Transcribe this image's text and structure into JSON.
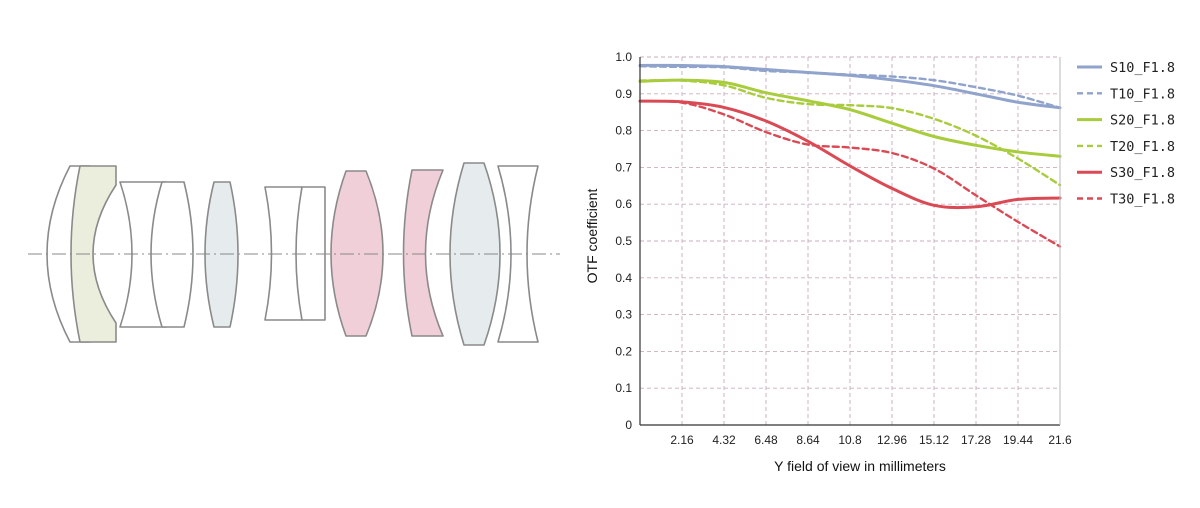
{
  "diagram": {
    "description_icon": "lens-cross-section-icon"
  },
  "colors": {
    "s10": "#8fa3cc",
    "t10": "#8fa3cc",
    "s20": "#a8cc3c",
    "t20": "#a8cc3c",
    "s30": "#d94a55",
    "t30": "#d94a55",
    "grid": "#c9aebd",
    "lens_stroke": "#8a8a8a",
    "lens_yellow": "#eceedd",
    "lens_blue": "#e6ecee",
    "lens_pink": "#f0cfd8"
  },
  "chart_data": {
    "type": "line",
    "title": "",
    "xlabel": "Y field of view in millimeters",
    "ylabel": "OTF coefficient",
    "xlim": [
      0,
      21.6
    ],
    "ylim": [
      0,
      1.0
    ],
    "x_ticks": [
      "2.16",
      "4.32",
      "6.48",
      "8.64",
      "10.8",
      "12.96",
      "15.12",
      "17.28",
      "19.44",
      "21.6"
    ],
    "y_ticks": [
      "0",
      "0.1",
      "0.2",
      "0.3",
      "0.4",
      "0.5",
      "0.6",
      "0.7",
      "0.8",
      "0.9",
      "1.0"
    ],
    "legend_position": "right",
    "series": [
      {
        "name": "S10_F1.8",
        "color_key": "s10",
        "dashed": false,
        "points": [
          [
            0,
            0.977
          ],
          [
            2.16,
            0.977
          ],
          [
            4.32,
            0.974
          ],
          [
            6.48,
            0.966
          ],
          [
            8.64,
            0.958
          ],
          [
            10.8,
            0.95
          ],
          [
            12.96,
            0.938
          ],
          [
            15.12,
            0.922
          ],
          [
            17.28,
            0.9
          ],
          [
            19.44,
            0.877
          ],
          [
            21.6,
            0.862
          ]
        ]
      },
      {
        "name": "T10_F1.8",
        "color_key": "t10",
        "dashed": true,
        "points": [
          [
            0,
            0.975
          ],
          [
            2.16,
            0.973
          ],
          [
            4.32,
            0.972
          ],
          [
            6.48,
            0.962
          ],
          [
            8.64,
            0.958
          ],
          [
            10.8,
            0.952
          ],
          [
            12.96,
            0.947
          ],
          [
            15.12,
            0.937
          ],
          [
            17.28,
            0.918
          ],
          [
            19.44,
            0.895
          ],
          [
            21.6,
            0.862
          ]
        ]
      },
      {
        "name": "S20_F1.8",
        "color_key": "s20",
        "dashed": false,
        "points": [
          [
            0,
            0.934
          ],
          [
            2.16,
            0.937
          ],
          [
            4.32,
            0.931
          ],
          [
            6.48,
            0.903
          ],
          [
            8.64,
            0.881
          ],
          [
            10.8,
            0.857
          ],
          [
            12.96,
            0.82
          ],
          [
            15.12,
            0.784
          ],
          [
            17.28,
            0.76
          ],
          [
            19.44,
            0.742
          ],
          [
            21.6,
            0.73
          ]
        ]
      },
      {
        "name": "T20_F1.8",
        "color_key": "t20",
        "dashed": true,
        "points": [
          [
            0,
            0.936
          ],
          [
            2.16,
            0.936
          ],
          [
            4.32,
            0.923
          ],
          [
            6.48,
            0.889
          ],
          [
            8.64,
            0.872
          ],
          [
            10.8,
            0.869
          ],
          [
            12.96,
            0.861
          ],
          [
            15.12,
            0.832
          ],
          [
            17.28,
            0.786
          ],
          [
            19.44,
            0.724
          ],
          [
            21.6,
            0.652
          ]
        ]
      },
      {
        "name": "S30_F1.8",
        "color_key": "s30",
        "dashed": false,
        "points": [
          [
            0,
            0.88
          ],
          [
            2.16,
            0.878
          ],
          [
            4.32,
            0.863
          ],
          [
            6.48,
            0.826
          ],
          [
            8.64,
            0.771
          ],
          [
            10.8,
            0.704
          ],
          [
            12.96,
            0.643
          ],
          [
            15.12,
            0.597
          ],
          [
            17.28,
            0.593
          ],
          [
            19.44,
            0.613
          ],
          [
            21.6,
            0.617
          ]
        ]
      },
      {
        "name": "T30_F1.8",
        "color_key": "t30",
        "dashed": true,
        "points": [
          [
            0,
            0.88
          ],
          [
            2.16,
            0.876
          ],
          [
            4.32,
            0.844
          ],
          [
            6.48,
            0.796
          ],
          [
            8.64,
            0.762
          ],
          [
            10.8,
            0.754
          ],
          [
            12.96,
            0.739
          ],
          [
            15.12,
            0.697
          ],
          [
            17.28,
            0.624
          ],
          [
            19.44,
            0.552
          ],
          [
            21.6,
            0.485
          ]
        ]
      }
    ]
  }
}
